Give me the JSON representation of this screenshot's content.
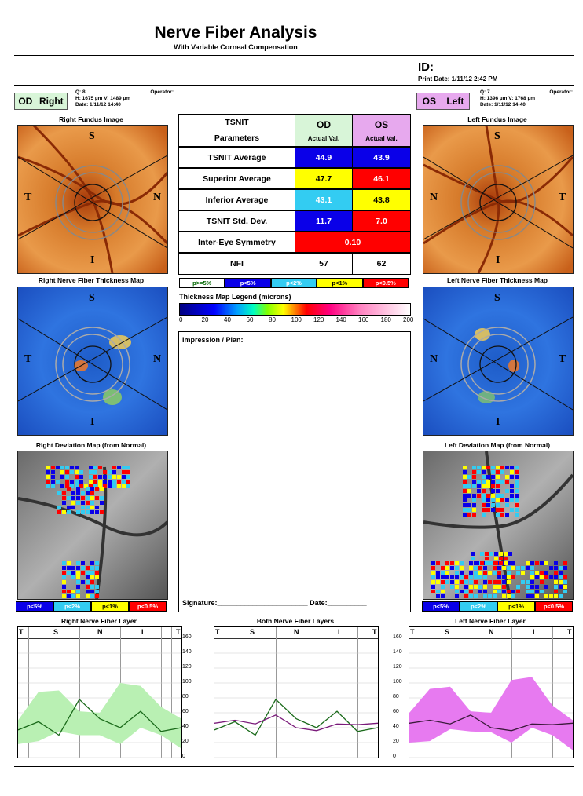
{
  "header": {
    "title": "Nerve Fiber Analysis",
    "subtitle": "With Variable Corneal Compensation",
    "id_label": "ID:",
    "print_date": "Print Date: 1/11/12 2:42 PM"
  },
  "od": {
    "tag_code": "OD",
    "tag_label": "Right",
    "q": "Q: 8",
    "operator": "Operator:",
    "hv": "H: 1675 µm V: 1489 µm",
    "date": "Date: 1/11/12 14:40",
    "fundus_title": "Right Fundus Image",
    "thickness_title": "Right Nerve Fiber Thickness Map",
    "deviation_title": "Right Deviation Map (from Normal)",
    "graph_title": "Right Nerve Fiber Layer",
    "marker_s": "S",
    "marker_t": "T",
    "marker_n": "N",
    "marker_i": "I"
  },
  "os": {
    "tag_code": "OS",
    "tag_label": "Left",
    "q": "Q: 7",
    "operator": "Operator:",
    "hv": "H: 1396 µm V: 1768 µm",
    "date": "Date: 1/11/12 14:40",
    "fundus_title": "Left Fundus Image",
    "thickness_title": "Left Nerve Fiber Thickness Map",
    "deviation_title": "Left Deviation Map (from Normal)",
    "graph_title": "Left Nerve Fiber Layer",
    "marker_s": "S",
    "marker_t": "T",
    "marker_n": "N",
    "marker_i": "I"
  },
  "both_graph_title": "Both Nerve Fiber Layers",
  "table": {
    "header1": "TSNIT",
    "header2": "Parameters",
    "od_header": "OD",
    "os_header": "OS",
    "od_sub": "Actual Val.",
    "os_sub": "Actual Val.",
    "rows": [
      {
        "label": "TSNIT Average",
        "od": "44.9",
        "os": "43.9",
        "od_color": "#0a00e8",
        "os_color": "#0a00e8"
      },
      {
        "label": "Superior Average",
        "od": "47.7",
        "os": "46.1",
        "od_color": "#ffff00",
        "os_color": "#ff0000"
      },
      {
        "label": "Inferior Average",
        "od": "43.1",
        "os": "43.8",
        "od_color": "#33ccf2",
        "os_color": "#ffff00"
      },
      {
        "label": "TSNIT Std. Dev.",
        "od": "11.7",
        "os": "7.0",
        "od_color": "#0a00e8",
        "os_color": "#ff0000"
      }
    ],
    "symmetry_label": "Inter-Eye Symmetry",
    "symmetry_value": "0.10",
    "symmetry_color": "#ff0000",
    "nfi_label": "NFI",
    "nfi_od": "57",
    "nfi_os": "62"
  },
  "p_legend": [
    {
      "label": "p>=5%",
      "bg": "#ffffff",
      "fg": "#006600"
    },
    {
      "label": "p<5%",
      "bg": "#0a00e8",
      "fg": "#ffffff"
    },
    {
      "label": "p<2%",
      "bg": "#33ccf2",
      "fg": "#ffffff"
    },
    {
      "label": "p<1%",
      "bg": "#ffff00",
      "fg": "#000000"
    },
    {
      "label": "p<0.5%",
      "bg": "#ff0000",
      "fg": "#ffffff"
    }
  ],
  "dev_legend": [
    {
      "label": "p<5%",
      "bg": "#0a00e8",
      "fg": "#ffffff"
    },
    {
      "label": "p<2%",
      "bg": "#33ccf2",
      "fg": "#ffffff"
    },
    {
      "label": "p<1%",
      "bg": "#ffff00",
      "fg": "#000000"
    },
    {
      "label": "p<0.5%",
      "bg": "#ff0000",
      "fg": "#ffffff"
    }
  ],
  "thickness_legend": {
    "title": "Thickness Map Legend (microns)",
    "ticks": [
      "0",
      "20",
      "40",
      "60",
      "80",
      "100",
      "120",
      "140",
      "160",
      "180",
      "200"
    ]
  },
  "impression_label": "Impression / Plan:",
  "signature_label": "Signature:_______________________ Date:__________",
  "graph_axis": {
    "sectors": [
      "T",
      "S",
      "N",
      "I",
      "T"
    ],
    "y_ticks": [
      "160",
      "140",
      "120",
      "100",
      "80",
      "60",
      "40",
      "20",
      "0"
    ]
  },
  "colors": {
    "od_tag": "#d8f5d8",
    "os_tag": "#e7a9ee",
    "od_band": "#b9f0b3",
    "os_band": "#e77af0"
  },
  "chart_data": [
    {
      "type": "line",
      "title": "Right Nerve Fiber Layer",
      "xlabel": "",
      "ylabel": "",
      "ylim": [
        0,
        160
      ],
      "x": [
        0,
        8,
        16,
        24,
        32,
        40,
        48,
        56,
        64
      ],
      "series": [
        {
          "values": [
            37,
            48,
            30,
            78,
            52,
            40,
            62,
            35,
            40
          ]
        }
      ],
      "band_upper": [
        50,
        88,
        90,
        62,
        60,
        100,
        96,
        68,
        52
      ],
      "band_lower": [
        18,
        22,
        35,
        30,
        30,
        18,
        40,
        30,
        12
      ]
    },
    {
      "type": "line",
      "title": "Both Nerve Fiber Layers",
      "xlabel": "",
      "ylabel": "",
      "ylim": [
        0,
        160
      ],
      "x": [
        0,
        8,
        16,
        24,
        32,
        40,
        48,
        56,
        64
      ],
      "series": [
        {
          "values": [
            37,
            48,
            30,
            78,
            52,
            40,
            62,
            35,
            40
          ]
        },
        {
          "values": [
            46,
            50,
            45,
            57,
            40,
            36,
            45,
            44,
            46
          ]
        }
      ]
    },
    {
      "type": "line",
      "title": "Left Nerve Fiber Layer",
      "xlabel": "",
      "ylabel": "",
      "ylim": [
        0,
        160
      ],
      "x": [
        0,
        8,
        16,
        24,
        32,
        40,
        48,
        56,
        64
      ],
      "series": [
        {
          "values": [
            46,
            50,
            45,
            57,
            40,
            36,
            45,
            44,
            46
          ]
        }
      ],
      "band_upper": [
        60,
        92,
        95,
        62,
        60,
        104,
        108,
        70,
        50
      ],
      "band_lower": [
        20,
        22,
        38,
        35,
        34,
        20,
        40,
        30,
        10
      ]
    }
  ]
}
